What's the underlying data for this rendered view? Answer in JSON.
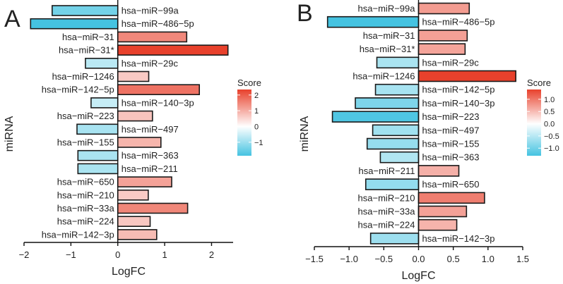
{
  "chart_data": [
    {
      "type": "bar",
      "orientation": "horizontal",
      "panel_label": "A",
      "xlabel": "LogFC",
      "ylabel": "miRNA",
      "xlim": [
        -2,
        2.46
      ],
      "xticks": [
        -2,
        -1,
        0,
        1,
        2
      ],
      "xtick_labels": [
        "−2",
        "−1",
        "0",
        "1",
        "2"
      ],
      "categories": [
        "hsa−miR−99a",
        "hsa−miR−486−5p",
        "hsa−miR−31",
        "hsa−miR−31*",
        "hsa−miR−29c",
        "hsa−miR−1246",
        "hsa−miR−142−5p",
        "hsa−miR−140−3p",
        "hsa−miR−223",
        "hsa−miR−497",
        "hsa−miR−155",
        "hsa−miR−363",
        "hsa−miR−211",
        "hsa−miR−650",
        "hsa−miR−210",
        "hsa−miR−33a",
        "hsa−miR−224",
        "hsa−miR−142−3p"
      ],
      "values": [
        -1.4,
        -1.86,
        1.47,
        2.35,
        -0.69,
        0.66,
        1.74,
        -0.57,
        0.74,
        -0.87,
        0.92,
        -0.85,
        -0.85,
        1.15,
        0.65,
        1.49,
        0.69,
        0.83
      ],
      "legend": {
        "title": "Score",
        "position": "right",
        "ticks": [
          2,
          1,
          0,
          -1
        ],
        "tick_labels": [
          "2",
          "1",
          "0",
          "−1"
        ],
        "range": [
          -1.86,
          2.35
        ]
      }
    },
    {
      "type": "bar",
      "orientation": "horizontal",
      "panel_label": "B",
      "xlabel": "LogFC",
      "ylabel": "miRNA",
      "xlim": [
        -1.5,
        1.5
      ],
      "xticks": [
        -1.5,
        -1.0,
        -0.5,
        0,
        0.5,
        1.0,
        1.5
      ],
      "xtick_labels": [
        "−1.5",
        "−1.0",
        "−0.5",
        "0.0",
        "0.5",
        "1.0",
        "1.5"
      ],
      "categories": [
        "hsa−miR−99a",
        "hsa−miR−486−5p",
        "hsa−miR−31",
        "hsa−miR−31*",
        "hsa−miR−29c",
        "hsa−miR−1246",
        "hsa−miR−142−5p",
        "hsa−miR−140−3p",
        "hsa−miR−223",
        "hsa−miR−497",
        "hsa−miR−155",
        "hsa−miR−363",
        "hsa−miR−211",
        "hsa−miR−650",
        "hsa−miR−210",
        "hsa−miR−33a",
        "hsa−miR−224",
        "hsa−miR−142−3p"
      ],
      "values": [
        0.73,
        -1.31,
        0.7,
        0.67,
        -0.6,
        1.4,
        -0.62,
        -0.91,
        -1.24,
        -0.66,
        -0.74,
        -0.55,
        0.58,
        -0.76,
        0.95,
        0.69,
        0.55,
        -0.69
      ],
      "legend": {
        "title": "Score",
        "position": "right",
        "ticks": [
          1.0,
          0.5,
          0.0,
          -0.5,
          -1.0
        ],
        "tick_labels": [
          "1.0",
          "0.5",
          "0.0",
          "−0.5",
          "−1.0"
        ],
        "range": [
          -1.31,
          1.4
        ]
      }
    }
  ],
  "colors": {
    "high": "#e8412c",
    "mid": "#ffffff",
    "low": "#45c3e1",
    "outline": "#1a1a1a"
  }
}
